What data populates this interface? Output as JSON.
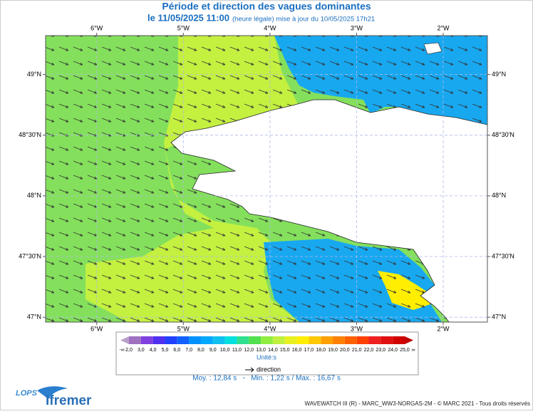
{
  "header": {
    "title": "Période et direction des vagues dominantes",
    "date": "le 11/05/2025 11:00",
    "note": "(heure légale) mise à jour du 10/05/2025 17h21"
  },
  "map": {
    "xlim": [
      -6.59,
      -1.49
    ],
    "ylim": [
      46.96,
      49.32
    ],
    "grid": true,
    "xticks": [
      {
        "value": -6,
        "label": "6°W"
      },
      {
        "value": -5,
        "label": "5°W"
      },
      {
        "value": -4,
        "label": "4°W"
      },
      {
        "value": -3,
        "label": "3°W"
      },
      {
        "value": -2,
        "label": "2°W"
      }
    ],
    "yticks": [
      {
        "value": 47,
        "label": "47°N"
      },
      {
        "value": 47.5,
        "label": "47°30'N"
      },
      {
        "value": 48,
        "label": "48°N"
      },
      {
        "value": 48.5,
        "label": "48°30'N"
      },
      {
        "value": 49,
        "label": "49°N"
      }
    ]
  },
  "colorbar": {
    "low_label": "-∞",
    "high_label": "∞",
    "unit": "Unité:s",
    "ticks": [
      {
        "value": 2,
        "label": "2,0"
      },
      {
        "value": 3,
        "label": "3,0"
      },
      {
        "value": 4,
        "label": "4,0"
      },
      {
        "value": 5,
        "label": "5,0"
      },
      {
        "value": 6,
        "label": "6,0"
      },
      {
        "value": 7,
        "label": "7,0"
      },
      {
        "value": 8,
        "label": "8,0"
      },
      {
        "value": 9,
        "label": "9,0"
      },
      {
        "value": 10,
        "label": "10,0"
      },
      {
        "value": 11,
        "label": "11,0"
      },
      {
        "value": 12,
        "label": "12,0"
      },
      {
        "value": 13,
        "label": "13,0"
      },
      {
        "value": 14,
        "label": "14,0"
      },
      {
        "value": 15,
        "label": "15,0"
      },
      {
        "value": 16,
        "label": "16,0"
      },
      {
        "value": 17,
        "label": "17,0"
      },
      {
        "value": 18,
        "label": "18,0"
      },
      {
        "value": 19,
        "label": "19,0"
      },
      {
        "value": 20,
        "label": "20,0"
      },
      {
        "value": 21,
        "label": "21,0"
      },
      {
        "value": 22,
        "label": "22,0"
      },
      {
        "value": 23,
        "label": "23,0"
      },
      {
        "value": 24,
        "label": "24,0"
      },
      {
        "value": 25,
        "label": "25,0"
      }
    ],
    "colors": [
      "#b8a0c8",
      "#a070c0",
      "#8040e0",
      "#5030f0",
      "#2040ff",
      "#1060ff",
      "#0090ff",
      "#00a8ff",
      "#10c0f0",
      "#00e0e0",
      "#30e090",
      "#50e050",
      "#90ee40",
      "#c0f040",
      "#e8f020",
      "#ffee00",
      "#ffc800",
      "#ffa000",
      "#ff8000",
      "#ff6000",
      "#ff4000",
      "#f02020",
      "#e01010",
      "#d00000",
      "#c00000"
    ]
  },
  "legend": {
    "arrow_label": "direction"
  },
  "stats": "Moy. : 12,84 s   -   Min. : 1,22 s / Max. : 16,67 s",
  "footer": {
    "credits": "WAVEWATCH III (R) - MARC_WW3-NORGAS-2M - © MARC 2021 - Tous droits réservés",
    "logo1": "LOPS",
    "logo2": "Ifremer"
  }
}
